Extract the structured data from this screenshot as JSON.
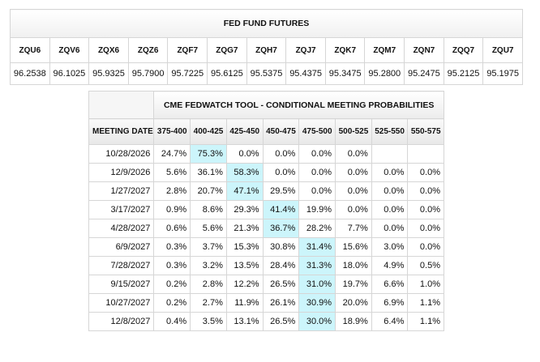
{
  "futures": {
    "title": "FED FUND FUTURES",
    "contracts": [
      {
        "symbol": "ZQU6",
        "price": "96.2538"
      },
      {
        "symbol": "ZQV6",
        "price": "96.1025"
      },
      {
        "symbol": "ZQX6",
        "price": "95.9325"
      },
      {
        "symbol": "ZQZ6",
        "price": "95.7900"
      },
      {
        "symbol": "ZQF7",
        "price": "95.7225"
      },
      {
        "symbol": "ZQG7",
        "price": "95.6125"
      },
      {
        "symbol": "ZQH7",
        "price": "95.5375"
      },
      {
        "symbol": "ZQJ7",
        "price": "95.4375"
      },
      {
        "symbol": "ZQK7",
        "price": "95.3475"
      },
      {
        "symbol": "ZQM7",
        "price": "95.2800"
      },
      {
        "symbol": "ZQN7",
        "price": "95.2475"
      },
      {
        "symbol": "ZQQ7",
        "price": "95.2125"
      },
      {
        "symbol": "ZQU7",
        "price": "95.1975"
      }
    ]
  },
  "fedwatch": {
    "title": "CME FEDWATCH TOOL - CONDITIONAL MEETING PROBABILITIES",
    "date_header": "MEETING DATE",
    "columns": [
      "375-400",
      "400-425",
      "425-450",
      "450-475",
      "475-500",
      "500-525",
      "525-550",
      "550-575"
    ],
    "highlight_color": "#ccf5fb",
    "rows": [
      {
        "date": "10/28/2026",
        "values": [
          "24.7%",
          "75.3%",
          "0.0%",
          "0.0%",
          "0.0%",
          "0.0%",
          "",
          ""
        ],
        "highlight": 1
      },
      {
        "date": "12/9/2026",
        "values": [
          "5.6%",
          "36.1%",
          "58.3%",
          "0.0%",
          "0.0%",
          "0.0%",
          "0.0%",
          "0.0%"
        ],
        "highlight": 2
      },
      {
        "date": "1/27/2027",
        "values": [
          "2.8%",
          "20.7%",
          "47.1%",
          "29.5%",
          "0.0%",
          "0.0%",
          "0.0%",
          "0.0%"
        ],
        "highlight": 2
      },
      {
        "date": "3/17/2027",
        "values": [
          "0.9%",
          "8.6%",
          "29.3%",
          "41.4%",
          "19.9%",
          "0.0%",
          "0.0%",
          "0.0%"
        ],
        "highlight": 3
      },
      {
        "date": "4/28/2027",
        "values": [
          "0.6%",
          "5.6%",
          "21.3%",
          "36.7%",
          "28.2%",
          "7.7%",
          "0.0%",
          "0.0%"
        ],
        "highlight": 3
      },
      {
        "date": "6/9/2027",
        "values": [
          "0.3%",
          "3.7%",
          "15.3%",
          "30.8%",
          "31.4%",
          "15.6%",
          "3.0%",
          "0.0%"
        ],
        "highlight": 4
      },
      {
        "date": "7/28/2027",
        "values": [
          "0.3%",
          "3.2%",
          "13.5%",
          "28.4%",
          "31.3%",
          "18.0%",
          "4.9%",
          "0.5%"
        ],
        "highlight": 4
      },
      {
        "date": "9/15/2027",
        "values": [
          "0.2%",
          "2.8%",
          "12.2%",
          "26.5%",
          "31.0%",
          "19.7%",
          "6.6%",
          "1.0%"
        ],
        "highlight": 4
      },
      {
        "date": "10/27/2027",
        "values": [
          "0.2%",
          "2.7%",
          "11.9%",
          "26.1%",
          "30.9%",
          "20.0%",
          "6.9%",
          "1.1%"
        ],
        "highlight": 4
      },
      {
        "date": "12/8/2027",
        "values": [
          "0.4%",
          "3.5%",
          "13.1%",
          "26.5%",
          "30.0%",
          "18.9%",
          "6.4%",
          "1.1%"
        ],
        "highlight": 4
      }
    ]
  }
}
